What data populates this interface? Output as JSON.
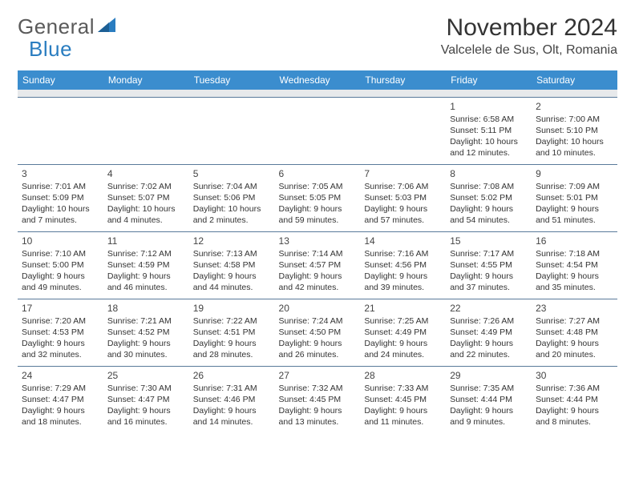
{
  "brand": {
    "text1": "General",
    "text2": "Blue"
  },
  "title": "November 2024",
  "location": "Valcelele de Sus, Olt, Romania",
  "header_bg": "#3b8dce",
  "day_headers": [
    "Sunday",
    "Monday",
    "Tuesday",
    "Wednesday",
    "Thursday",
    "Friday",
    "Saturday"
  ],
  "weeks": [
    [
      null,
      null,
      null,
      null,
      null,
      {
        "n": "1",
        "sr": "6:58 AM",
        "ss": "5:11 PM",
        "dl": "10 hours and 12 minutes."
      },
      {
        "n": "2",
        "sr": "7:00 AM",
        "ss": "5:10 PM",
        "dl": "10 hours and 10 minutes."
      }
    ],
    [
      {
        "n": "3",
        "sr": "7:01 AM",
        "ss": "5:09 PM",
        "dl": "10 hours and 7 minutes."
      },
      {
        "n": "4",
        "sr": "7:02 AM",
        "ss": "5:07 PM",
        "dl": "10 hours and 4 minutes."
      },
      {
        "n": "5",
        "sr": "7:04 AM",
        "ss": "5:06 PM",
        "dl": "10 hours and 2 minutes."
      },
      {
        "n": "6",
        "sr": "7:05 AM",
        "ss": "5:05 PM",
        "dl": "9 hours and 59 minutes."
      },
      {
        "n": "7",
        "sr": "7:06 AM",
        "ss": "5:03 PM",
        "dl": "9 hours and 57 minutes."
      },
      {
        "n": "8",
        "sr": "7:08 AM",
        "ss": "5:02 PM",
        "dl": "9 hours and 54 minutes."
      },
      {
        "n": "9",
        "sr": "7:09 AM",
        "ss": "5:01 PM",
        "dl": "9 hours and 51 minutes."
      }
    ],
    [
      {
        "n": "10",
        "sr": "7:10 AM",
        "ss": "5:00 PM",
        "dl": "9 hours and 49 minutes."
      },
      {
        "n": "11",
        "sr": "7:12 AM",
        "ss": "4:59 PM",
        "dl": "9 hours and 46 minutes."
      },
      {
        "n": "12",
        "sr": "7:13 AM",
        "ss": "4:58 PM",
        "dl": "9 hours and 44 minutes."
      },
      {
        "n": "13",
        "sr": "7:14 AM",
        "ss": "4:57 PM",
        "dl": "9 hours and 42 minutes."
      },
      {
        "n": "14",
        "sr": "7:16 AM",
        "ss": "4:56 PM",
        "dl": "9 hours and 39 minutes."
      },
      {
        "n": "15",
        "sr": "7:17 AM",
        "ss": "4:55 PM",
        "dl": "9 hours and 37 minutes."
      },
      {
        "n": "16",
        "sr": "7:18 AM",
        "ss": "4:54 PM",
        "dl": "9 hours and 35 minutes."
      }
    ],
    [
      {
        "n": "17",
        "sr": "7:20 AM",
        "ss": "4:53 PM",
        "dl": "9 hours and 32 minutes."
      },
      {
        "n": "18",
        "sr": "7:21 AM",
        "ss": "4:52 PM",
        "dl": "9 hours and 30 minutes."
      },
      {
        "n": "19",
        "sr": "7:22 AM",
        "ss": "4:51 PM",
        "dl": "9 hours and 28 minutes."
      },
      {
        "n": "20",
        "sr": "7:24 AM",
        "ss": "4:50 PM",
        "dl": "9 hours and 26 minutes."
      },
      {
        "n": "21",
        "sr": "7:25 AM",
        "ss": "4:49 PM",
        "dl": "9 hours and 24 minutes."
      },
      {
        "n": "22",
        "sr": "7:26 AM",
        "ss": "4:49 PM",
        "dl": "9 hours and 22 minutes."
      },
      {
        "n": "23",
        "sr": "7:27 AM",
        "ss": "4:48 PM",
        "dl": "9 hours and 20 minutes."
      }
    ],
    [
      {
        "n": "24",
        "sr": "7:29 AM",
        "ss": "4:47 PM",
        "dl": "9 hours and 18 minutes."
      },
      {
        "n": "25",
        "sr": "7:30 AM",
        "ss": "4:47 PM",
        "dl": "9 hours and 16 minutes."
      },
      {
        "n": "26",
        "sr": "7:31 AM",
        "ss": "4:46 PM",
        "dl": "9 hours and 14 minutes."
      },
      {
        "n": "27",
        "sr": "7:32 AM",
        "ss": "4:45 PM",
        "dl": "9 hours and 13 minutes."
      },
      {
        "n": "28",
        "sr": "7:33 AM",
        "ss": "4:45 PM",
        "dl": "9 hours and 11 minutes."
      },
      {
        "n": "29",
        "sr": "7:35 AM",
        "ss": "4:44 PM",
        "dl": "9 hours and 9 minutes."
      },
      {
        "n": "30",
        "sr": "7:36 AM",
        "ss": "4:44 PM",
        "dl": "9 hours and 8 minutes."
      }
    ]
  ],
  "labels": {
    "sunrise": "Sunrise: ",
    "sunset": "Sunset: ",
    "daylight": "Daylight: "
  }
}
